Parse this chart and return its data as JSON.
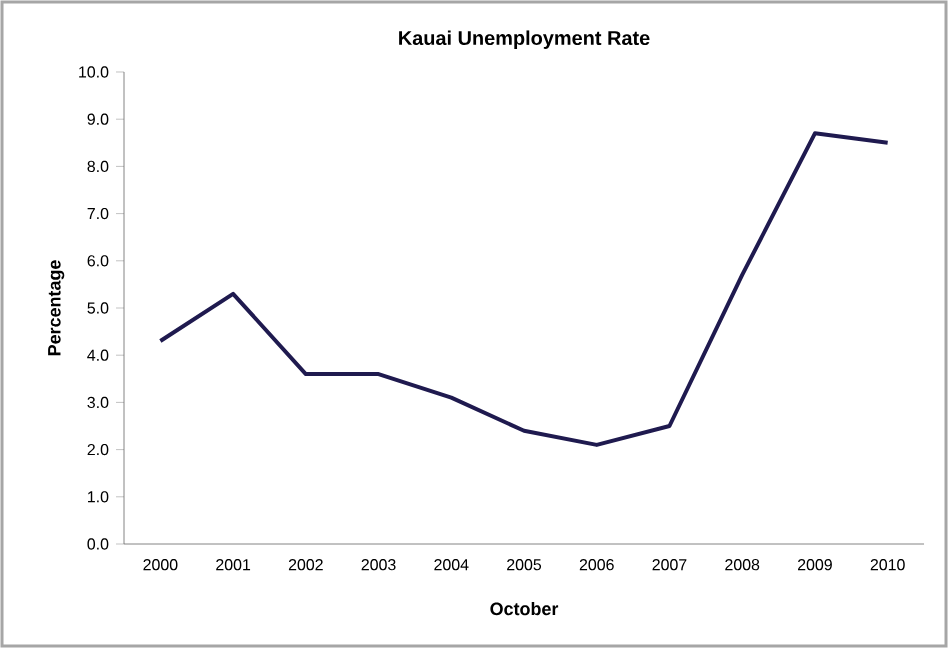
{
  "chart_data": {
    "type": "line",
    "title": "Kauai Unemployment Rate",
    "xlabel": "October",
    "ylabel": "Percentage",
    "categories": [
      "2000",
      "2001",
      "2002",
      "2003",
      "2004",
      "2005",
      "2006",
      "2007",
      "2008",
      "2009",
      "2010"
    ],
    "series": [
      {
        "color": "#1f1a4f",
        "values": [
          4.3,
          5.3,
          3.6,
          3.6,
          3.1,
          2.4,
          2.1,
          2.5,
          5.7,
          8.7,
          8.5
        ]
      }
    ],
    "ylim": [
      0,
      10
    ],
    "yticks": [
      {
        "value": 0,
        "label": "0.0"
      },
      {
        "value": 1,
        "label": "1.0"
      },
      {
        "value": 2,
        "label": "2.0"
      },
      {
        "value": 3,
        "label": "3.0"
      },
      {
        "value": 4,
        "label": "4.0"
      },
      {
        "value": 5,
        "label": "5.0"
      },
      {
        "value": 6,
        "label": "6.0"
      },
      {
        "value": 7,
        "label": "7.0"
      },
      {
        "value": 8,
        "label": "8.0"
      },
      {
        "value": 9,
        "label": "9.0"
      },
      {
        "value": 10,
        "label": "10.0"
      }
    ],
    "grid": false,
    "marker": "none",
    "line_style": "solid"
  }
}
